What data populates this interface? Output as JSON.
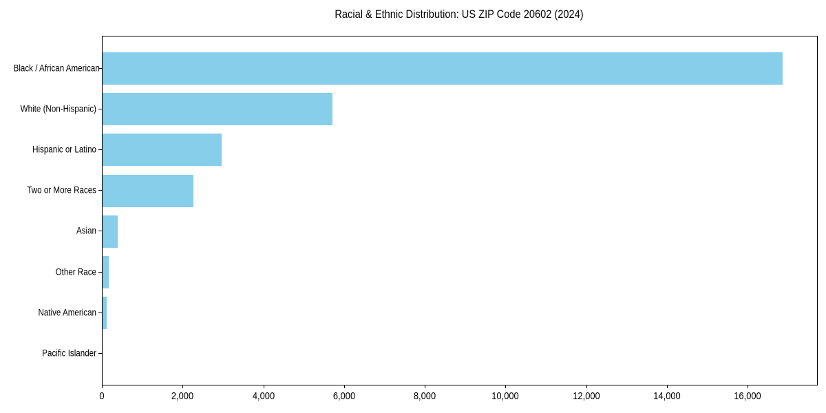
{
  "chart_data": {
    "type": "bar",
    "orientation": "horizontal",
    "title": "Racial & Ethnic Distribution: US ZIP Code 20602 (2024)",
    "categories": [
      "Black / African American",
      "White (Non-Hispanic)",
      "Hispanic or Latino",
      "Two or More Races",
      "Asian",
      "Other Race",
      "Native American",
      "Pacific Islander"
    ],
    "values": [
      16850,
      5700,
      2950,
      2250,
      375,
      150,
      110,
      0
    ],
    "xlabel": "",
    "ylabel": "",
    "xlim": [
      0,
      17700
    ],
    "x_tick_values": [
      0,
      2000,
      4000,
      6000,
      8000,
      10000,
      12000,
      14000,
      16000
    ],
    "x_tick_labels": [
      "0",
      "2,000",
      "4,000",
      "6,000",
      "8,000",
      "10,000",
      "12,000",
      "14,000",
      "16,000"
    ],
    "grid": false,
    "legend_position": "none",
    "bar_color": "#87CEEB",
    "axis_color": "#000000",
    "background_color": "#FFFFFF"
  }
}
